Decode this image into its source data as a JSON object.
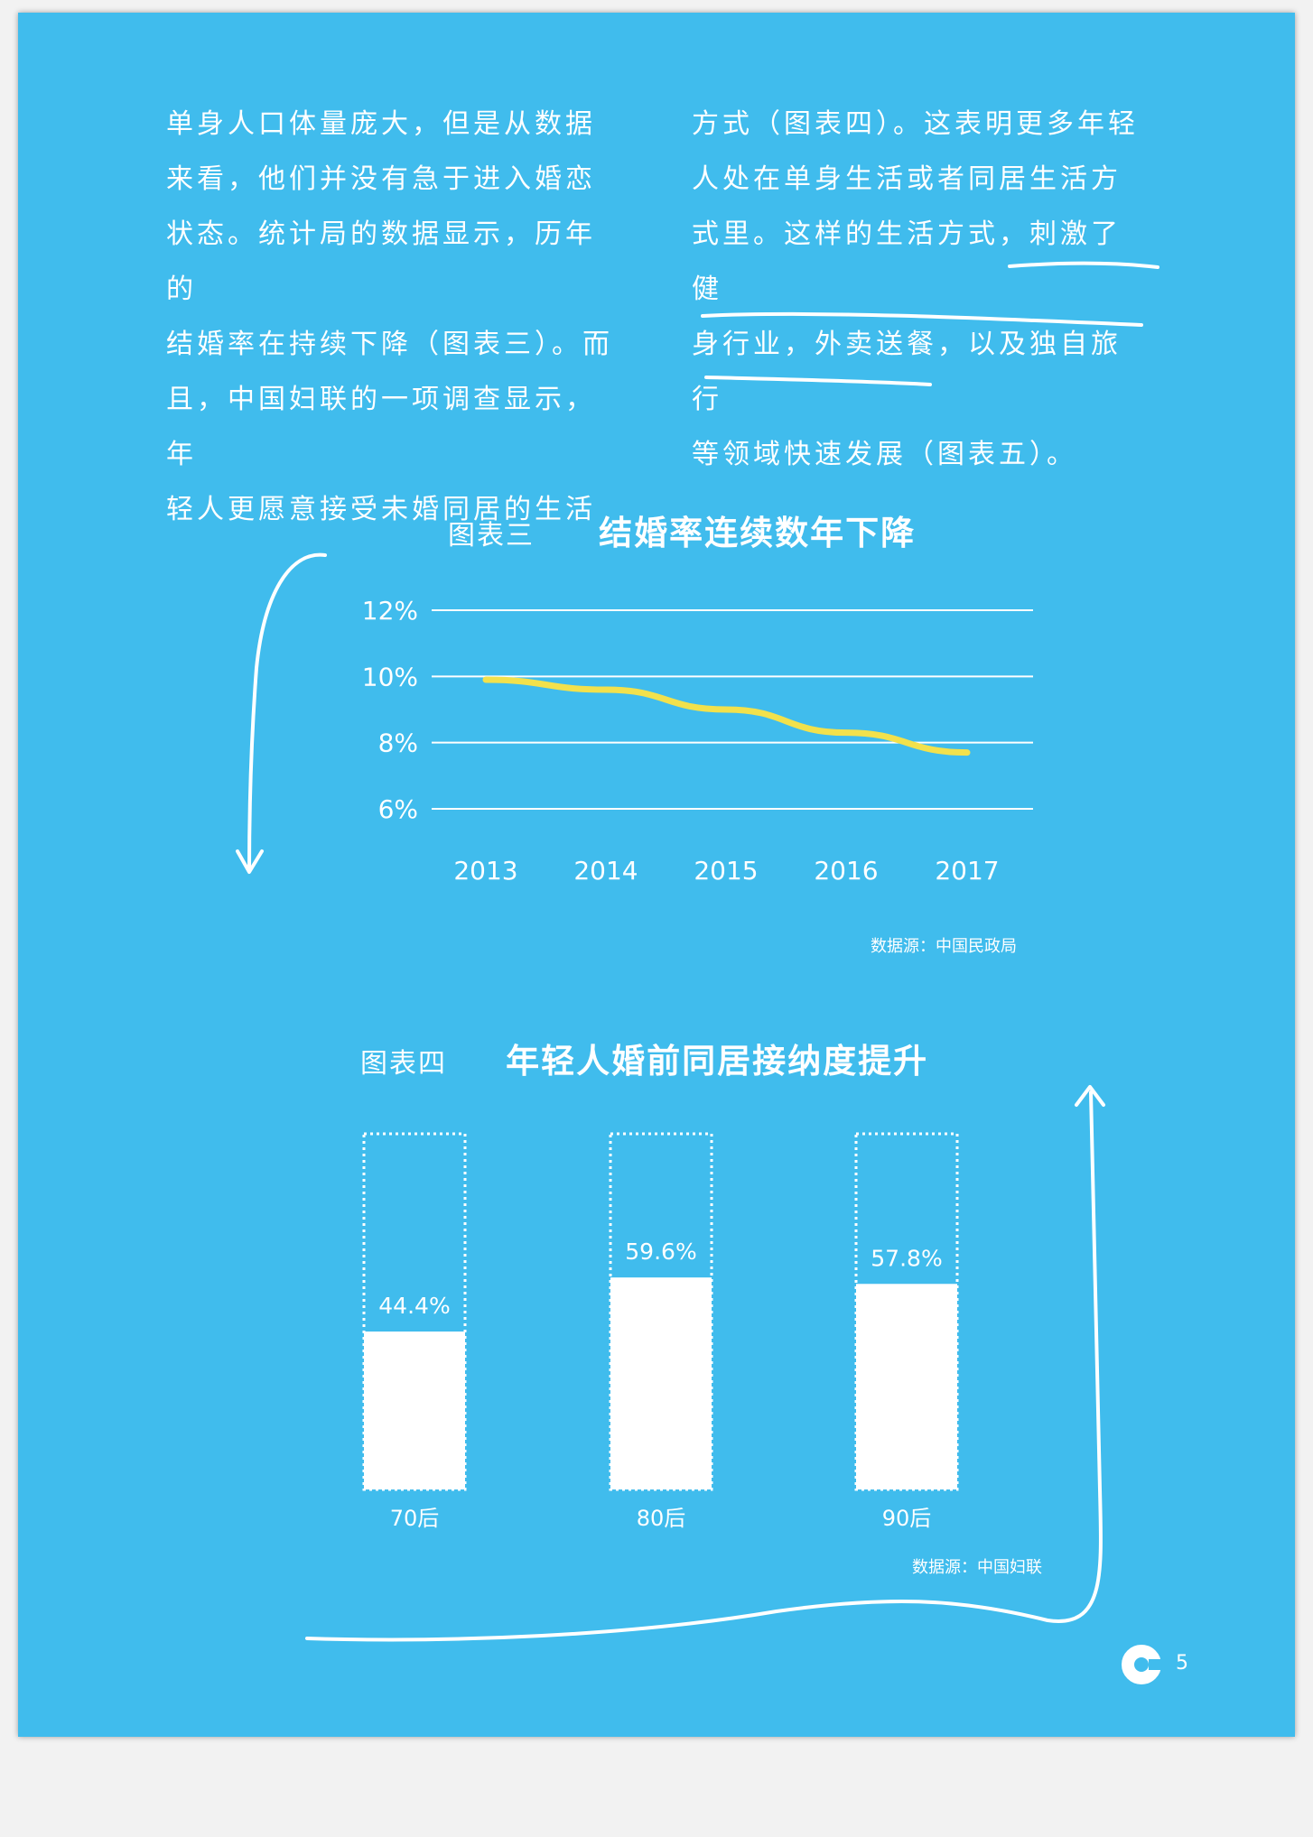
{
  "body_text": {
    "left_lines": [
      "单身人口体量庞大，但是从数据",
      "来看，他们并没有急于进入婚恋",
      "状态。统计局的数据显示，历年的",
      "结婚率在持续下降（图表三）。而",
      "且，中国妇联的一项调查显示，年",
      "轻人更愿意接受未婚同居的生活"
    ],
    "right_lines": [
      "方式（图表四）。这表明更多年轻",
      "人处在单身生活或者同居生活方",
      "式里。这样的生活方式，刺激了健",
      "身行业，外卖送餐，以及独自旅行",
      "等领域快速发展（图表五）。"
    ]
  },
  "chart3": {
    "label": "图表三",
    "title": "结婚率连续数年下降",
    "source": "数据源：中国民政局"
  },
  "chart4": {
    "label": "图表四",
    "title": "年轻人婚前同居接纳度提升",
    "source": "数据源：中国妇联"
  },
  "page_number": "5",
  "colors": {
    "background": "#40bced",
    "line": "#f2e14c",
    "bar": "#ffffff"
  },
  "chart_data": [
    {
      "type": "line",
      "title": "结婚率连续数年下降",
      "x": [
        "2013",
        "2014",
        "2015",
        "2016",
        "2017"
      ],
      "series": [
        {
          "values": [
            9.9,
            9.6,
            9.0,
            8.3,
            7.7
          ]
        }
      ],
      "yticks": [
        "12%",
        "10%",
        "8%",
        "6%"
      ],
      "ylim": [
        6,
        12
      ],
      "grid": true
    },
    {
      "type": "bar",
      "title": "年轻人婚前同居接纳度提升",
      "categories": [
        "70后",
        "80后",
        "90后"
      ],
      "values": [
        44.4,
        59.6,
        57.8
      ],
      "value_labels": [
        "44.4%",
        "59.6%",
        "57.8%"
      ],
      "ylim": [
        0,
        100
      ]
    }
  ]
}
